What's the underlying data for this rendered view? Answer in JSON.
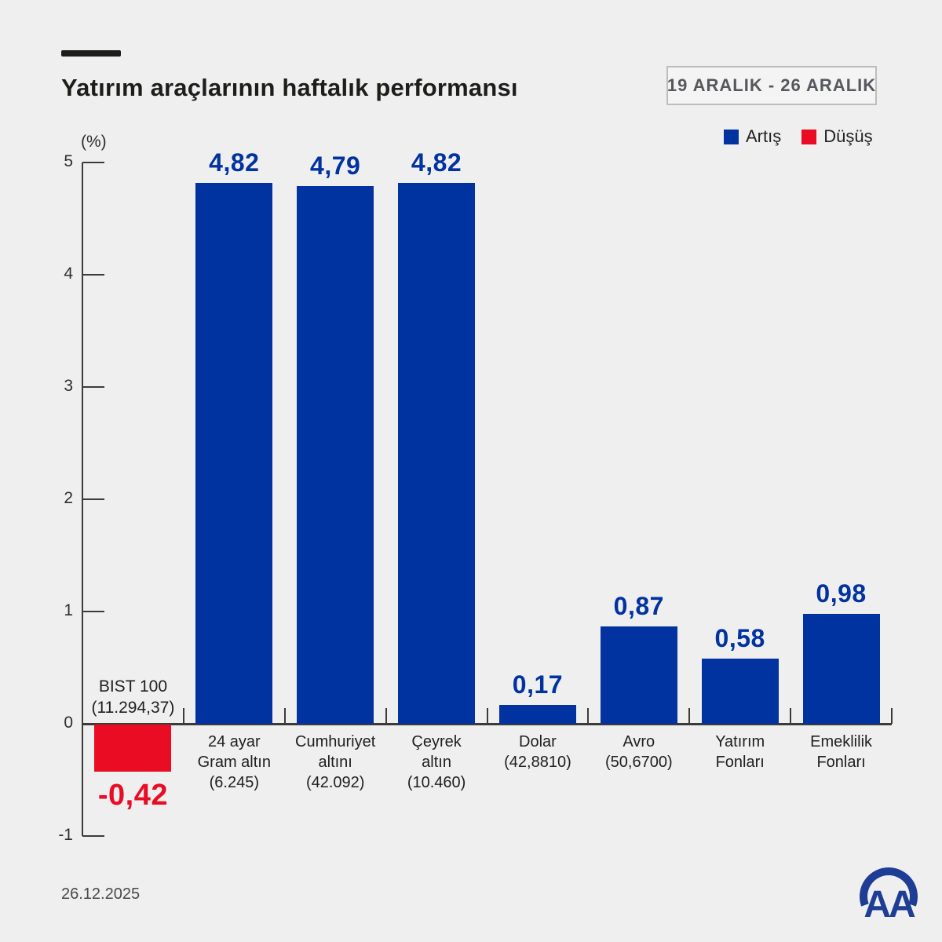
{
  "colors": {
    "background": "#efeff0",
    "up": "#0032a0",
    "down": "#e90c23",
    "axis": "#3b3b3b",
    "text_dark": "#1d1d1b",
    "logo_blue": "#1d3e94"
  },
  "header": {
    "title": "Yatırım araçlarının haftalık performansı",
    "date_range": "19 ARALIK - 26 ARALIK"
  },
  "legend": {
    "items": [
      {
        "label": "Artış",
        "direction": "up",
        "color": "#0032a0"
      },
      {
        "label": "Düşüş",
        "direction": "down",
        "color": "#e90c23"
      }
    ]
  },
  "footer": {
    "date": "26.12.2025",
    "logo_text": "AA"
  },
  "chart_data": {
    "type": "bar",
    "title": "Yatırım araçlarının haftalık performansı",
    "ylabel": "(%)",
    "ylim": [
      -1,
      5
    ],
    "yticks": [
      5,
      4,
      3,
      2,
      1,
      0,
      -1
    ],
    "grid": false,
    "legend_position": "top-right",
    "bars": [
      {
        "category": "BIST 100",
        "detail": "(11.294,37)",
        "label_lines": [
          "BIST 100",
          "(11.294,37)"
        ],
        "label_position": "above",
        "value": -0.42,
        "value_label": "-0,42",
        "direction": "down"
      },
      {
        "category": "24 ayar Gram altın",
        "detail": "(6.245)",
        "label_lines": [
          "24 ayar",
          "Gram altın",
          "(6.245)"
        ],
        "label_position": "below",
        "value": 4.82,
        "value_label": "4,82",
        "direction": "up"
      },
      {
        "category": "Cumhuriyet altını",
        "detail": "(42.092)",
        "label_lines": [
          "Cumhuriyet",
          "altını",
          "(42.092)"
        ],
        "label_position": "below",
        "value": 4.79,
        "value_label": "4,79",
        "direction": "up"
      },
      {
        "category": "Çeyrek altın",
        "detail": "(10.460)",
        "label_lines": [
          "Çeyrek",
          "altın",
          "(10.460)"
        ],
        "label_position": "below",
        "value": 4.82,
        "value_label": "4,82",
        "direction": "up"
      },
      {
        "category": "Dolar",
        "detail": "(42,8810)",
        "label_lines": [
          "Dolar",
          "(42,8810)"
        ],
        "label_position": "below",
        "value": 0.17,
        "value_label": "0,17",
        "direction": "up"
      },
      {
        "category": "Avro",
        "detail": "(50,6700)",
        "label_lines": [
          "Avro",
          "(50,6700)"
        ],
        "label_position": "below",
        "value": 0.87,
        "value_label": "0,87",
        "direction": "up"
      },
      {
        "category": "Yatırım Fonları",
        "detail": "",
        "label_lines": [
          "Yatırım",
          "Fonları"
        ],
        "label_position": "below",
        "value": 0.58,
        "value_label": "0,58",
        "direction": "up"
      },
      {
        "category": "Emeklilik Fonları",
        "detail": "",
        "label_lines": [
          "Emeklilik",
          "Fonları"
        ],
        "label_position": "below",
        "value": 0.98,
        "value_label": "0,98",
        "direction": "up"
      }
    ]
  }
}
